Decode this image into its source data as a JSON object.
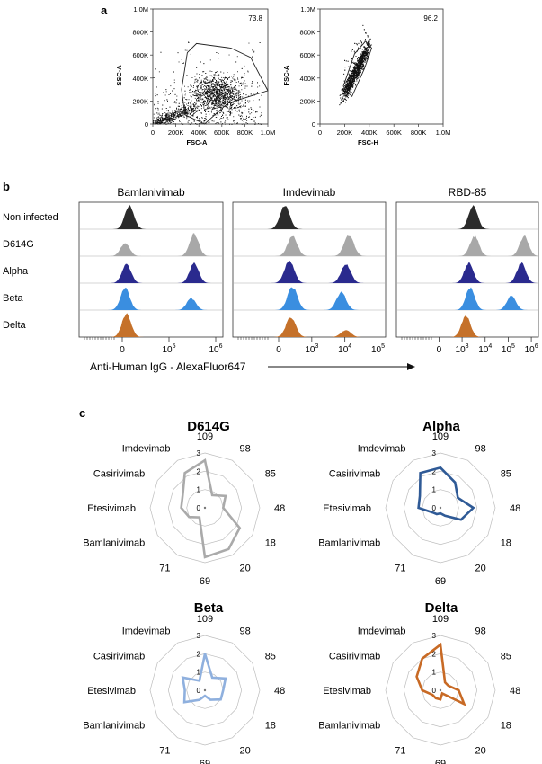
{
  "panels": {
    "a": "a",
    "b": "b",
    "c": "c"
  },
  "colors": {
    "non_infected": "#2b2b2b",
    "D614G": "#a8a8a8",
    "Alpha": "#2a2a8e",
    "Beta": "#3a8ee0",
    "Delta": "#c5712a",
    "radar_D614G": "#aaaaaa",
    "radar_Alpha": "#2f5a96",
    "radar_Beta": "#8fb0de",
    "radar_Delta": "#c86a25"
  },
  "chart_data": [
    {
      "type": "scatter",
      "panel": "a",
      "xlabel": "FSC-A",
      "ylabel": "SSC-A",
      "xticks": [
        "0",
        "200K",
        "400K",
        "600K",
        "800K",
        "1.0M"
      ],
      "yticks": [
        "0",
        "200K",
        "400K",
        "600K",
        "800K",
        "1.0M"
      ],
      "xlim": [
        0,
        1000000
      ],
      "ylim": [
        0,
        1000000
      ],
      "gate_percent": "73.8",
      "gate_polygon": [
        [
          280000,
          80000
        ],
        [
          250000,
          300000
        ],
        [
          300000,
          620000
        ],
        [
          380000,
          700000
        ],
        [
          680000,
          660000
        ],
        [
          850000,
          580000
        ],
        [
          1000000,
          290000
        ],
        [
          650000,
          180000
        ],
        [
          450000,
          0
        ]
      ]
    },
    {
      "type": "scatter",
      "panel": "a",
      "xlabel": "FSC-H",
      "ylabel": "FSC-A",
      "xticks": [
        "0",
        "200K",
        "400K",
        "600K",
        "800K",
        "1.0M"
      ],
      "yticks": [
        "0",
        "200K",
        "400K",
        "600K",
        "800K",
        "1.0M"
      ],
      "xlim": [
        0,
        1000000
      ],
      "ylim": [
        0,
        1000000
      ],
      "gate_percent": "96.2",
      "gate_polygon": [
        [
          210000,
          290000
        ],
        [
          190000,
          330000
        ],
        [
          280000,
          610000
        ],
        [
          370000,
          720000
        ],
        [
          420000,
          660000
        ],
        [
          360000,
          480000
        ],
        [
          260000,
          240000
        ]
      ]
    },
    {
      "type": "area",
      "panel": "b",
      "columns": [
        "Bamlanivimab",
        "Imdevimab",
        "RBD-85"
      ],
      "rows": [
        "Non infected",
        "D614G",
        "Alpha",
        "Beta",
        "Delta"
      ],
      "xlabel": "Anti-Human IgG - AlexaFluor647",
      "column_ticks": [
        [
          "0",
          "10^5",
          "10^6"
        ],
        [
          "0",
          "10^3",
          "10^4",
          "10^5"
        ],
        [
          "0",
          "10^3",
          "10^4",
          "10^5",
          "10^6"
        ]
      ],
      "peaks": [
        [
          [
            [
              0.35,
              1.0
            ]
          ],
          [
            [
              0.32,
              0.55
            ],
            [
              0.8,
              0.95
            ]
          ],
          [
            [
              0.33,
              0.8
            ],
            [
              0.8,
              0.85
            ]
          ],
          [
            [
              0.32,
              0.95
            ],
            [
              0.78,
              0.5
            ]
          ],
          [
            [
              0.33,
              1.0
            ]
          ]
        ],
        [
          [
            [
              0.34,
              1.0
            ]
          ],
          [
            [
              0.39,
              0.85
            ],
            [
              0.76,
              0.9
            ]
          ],
          [
            [
              0.37,
              0.95
            ],
            [
              0.74,
              0.8
            ]
          ],
          [
            [
              0.39,
              1.0
            ],
            [
              0.71,
              0.75
            ]
          ],
          [
            [
              0.38,
              0.85
            ],
            [
              0.74,
              0.3
            ]
          ]
        ],
        [
          [
            [
              0.54,
              1.0
            ]
          ],
          [
            [
              0.55,
              0.85
            ],
            [
              0.9,
              0.85
            ]
          ],
          [
            [
              0.51,
              0.85
            ],
            [
              0.88,
              0.85
            ]
          ],
          [
            [
              0.52,
              0.95
            ],
            [
              0.81,
              0.6
            ]
          ],
          [
            [
              0.49,
              0.9
            ]
          ]
        ]
      ]
    },
    {
      "type": "radar",
      "panel": "c",
      "spokes": [
        "109",
        "98",
        "85",
        "48",
        "18",
        "20",
        "69",
        "71",
        "Bamlanivimab",
        "Etesivimab",
        "Casirivimab",
        "Imdevimab"
      ],
      "rings": [
        "0",
        "1",
        "2",
        "3"
      ],
      "rmax": 3,
      "series": [
        {
          "name": "D614G",
          "values": [
            2.6,
            0.8,
            1.3,
            1.0,
            2.2,
            2.6,
            2.7,
            0.6,
            1.0,
            1.3,
            1.4,
            2.2
          ]
        },
        {
          "name": "Alpha",
          "values": [
            2.2,
            1.6,
            1.1,
            1.8,
            1.3,
            0.5,
            0.3,
            0.4,
            0.5,
            1.2,
            1.3,
            2.2
          ]
        },
        {
          "name": "Beta",
          "values": [
            2.0,
            0.8,
            1.3,
            1.0,
            1.0,
            0.6,
            0.3,
            0.6,
            1.3,
            1.1,
            1.4,
            0.6
          ]
        },
        {
          "name": "Delta",
          "values": [
            2.5,
            0.5,
            0.5,
            1.0,
            1.5,
            0.2,
            0.5,
            0.5,
            0.5,
            1.0,
            1.5,
            2.0
          ]
        }
      ]
    }
  ]
}
